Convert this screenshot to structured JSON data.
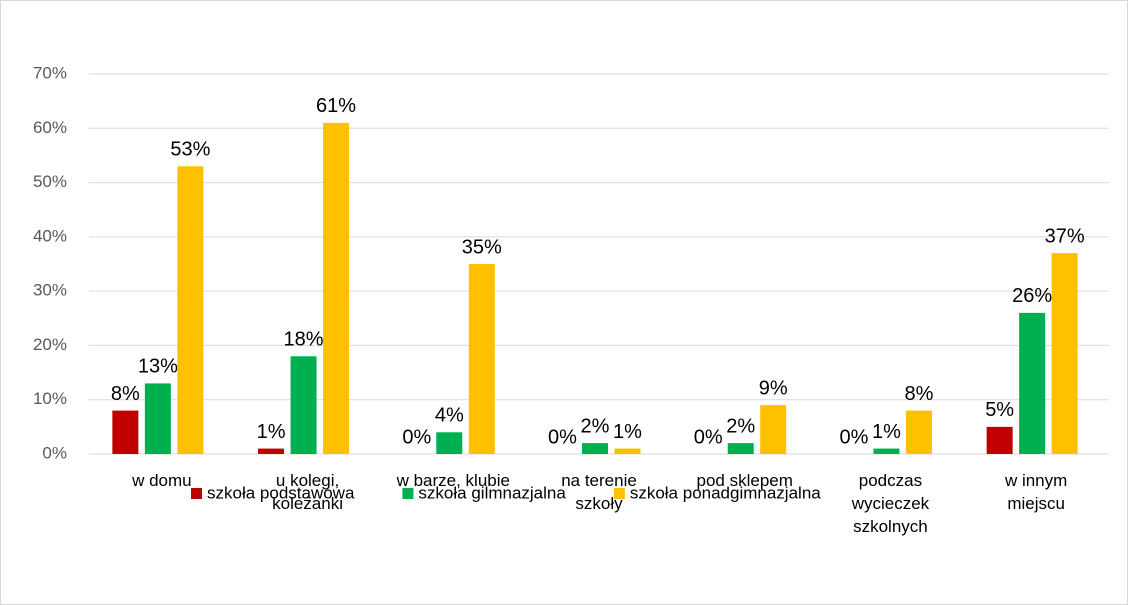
{
  "chart_data": {
    "type": "bar",
    "categories": [
      "w domu",
      "u kolegi, koleżanki",
      "w barze, klubie",
      "na terenie szkoły",
      "pod sklepem",
      "podczas wycieczek szkolnych",
      "w innym miejscu"
    ],
    "series": [
      {
        "name": "szkoła podstawowa",
        "color": "#c00000",
        "values": [
          8,
          1,
          0,
          0,
          0,
          0,
          5
        ],
        "value_labels": [
          "8%",
          "1%",
          "0%",
          "0%",
          "0%",
          "0%",
          "5%"
        ]
      },
      {
        "name": "szkoła gilmnazjalna",
        "color": "#00b050",
        "values": [
          13,
          18,
          4,
          2,
          2,
          1,
          26
        ],
        "value_labels": [
          "13%",
          "18%",
          "4%",
          "2%",
          "2%",
          "1%",
          "26%"
        ]
      },
      {
        "name": "szkoła ponadgimnazjalna",
        "color": "#ffc000",
        "values": [
          53,
          61,
          35,
          1,
          9,
          8,
          37
        ],
        "value_labels": [
          "53%",
          "61%",
          "35%",
          "1%",
          "9%",
          "8%",
          "37%"
        ]
      }
    ],
    "ylim": [
      0,
      70
    ],
    "yticks": [
      {
        "value": 0,
        "label": "0%"
      },
      {
        "value": 10,
        "label": "10%"
      },
      {
        "value": 20,
        "label": "20%"
      },
      {
        "value": 30,
        "label": "30%"
      },
      {
        "value": 40,
        "label": "40%"
      },
      {
        "value": 50,
        "label": "50%"
      },
      {
        "value": 60,
        "label": "60%"
      },
      {
        "value": 70,
        "label": "70%"
      }
    ],
    "grid": true,
    "legend": "bottom"
  }
}
